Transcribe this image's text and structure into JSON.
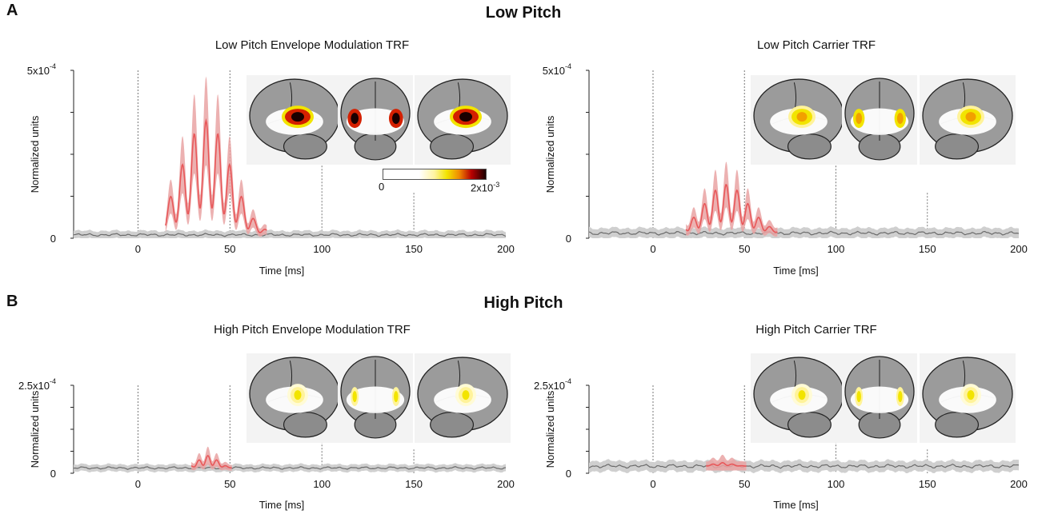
{
  "colors": {
    "trf_line": "#e8585a",
    "trf_band": "#e9a3a3",
    "baseline_line": "#6b6b6b",
    "baseline_band": "#cfcfcf",
    "brain": "#9b9b9b",
    "heat_low": "#ffffff",
    "heat_mid": "#f2e400",
    "heat_high": "#1a0000"
  },
  "panels": [
    {
      "letter": "A",
      "section_title": "Low Pitch",
      "colorbar": {
        "min_label": "0",
        "max_label": "2x10",
        "max_exp": "-3"
      }
    },
    {
      "letter": "B",
      "section_title": "High Pitch"
    }
  ],
  "chart_data": [
    {
      "type": "line",
      "title": "Low Pitch Envelope Modulation TRF",
      "xlabel": "Time [ms]",
      "ylabel": "Normalized units",
      "xlim": [
        -35,
        200
      ],
      "xticks": [
        0,
        50,
        100,
        150,
        200
      ],
      "ylim": [
        0,
        0.0005
      ],
      "ytick_labels": [
        {
          "base": "5x10",
          "exp": "-4",
          "value": 0.0005
        },
        {
          "base": "0",
          "exp": "",
          "value": 0
        }
      ],
      "response_window": [
        15,
        70
      ],
      "response_peak": 0.00035,
      "response_center": 37,
      "response_period": 6.5,
      "baseline": 1e-05,
      "band": 1.2e-05,
      "brain_activation": "strong"
    },
    {
      "type": "line",
      "title": "Low Pitch Carrier TRF",
      "xlabel": "Time [ms]",
      "ylabel": "Normalized units",
      "xlim": [
        -35,
        200
      ],
      "xticks": [
        0,
        50,
        100,
        150,
        200
      ],
      "ylim": [
        0,
        0.0005
      ],
      "ytick_labels": [
        {
          "base": "5x10",
          "exp": "-4",
          "value": 0.0005
        },
        {
          "base": "0",
          "exp": "",
          "value": 0
        }
      ],
      "response_window": [
        18,
        68
      ],
      "response_peak": 0.00016,
      "response_center": 40,
      "response_period": 6.0,
      "baseline": 1.5e-05,
      "band": 1.5e-05,
      "brain_activation": "medium"
    },
    {
      "type": "line",
      "title": "High Pitch Envelope Modulation TRF",
      "xlabel": "Time [ms]",
      "ylabel": "Normalized units",
      "xlim": [
        -35,
        200
      ],
      "xticks": [
        0,
        50,
        100,
        150,
        200
      ],
      "ylim": [
        0,
        0.00025
      ],
      "ytick_labels": [
        {
          "base": "2.5x10",
          "exp": "-4",
          "value": 0.00025
        },
        {
          "base": "0",
          "exp": "",
          "value": 0
        }
      ],
      "response_window": [
        29,
        51
      ],
      "response_peak": 5e-05,
      "response_center": 38,
      "response_period": 5.0,
      "baseline": 1.5e-05,
      "band": 1e-05,
      "brain_activation": "weak"
    },
    {
      "type": "line",
      "title": "High Pitch Carrier TRF",
      "xlabel": "Time [ms]",
      "ylabel": "Normalized units",
      "xlim": [
        -35,
        200
      ],
      "xticks": [
        0,
        50,
        100,
        150,
        200
      ],
      "ylim": [
        0,
        0.00025
      ],
      "ytick_labels": [
        {
          "base": "2.5x10",
          "exp": "-4",
          "value": 0.00025
        },
        {
          "base": "0",
          "exp": "",
          "value": 0
        }
      ],
      "response_window": [
        29,
        51
      ],
      "response_peak": 3e-05,
      "response_center": 38,
      "response_period": 5.5,
      "baseline": 2e-05,
      "band": 1.5e-05,
      "brain_activation": "weak"
    }
  ]
}
